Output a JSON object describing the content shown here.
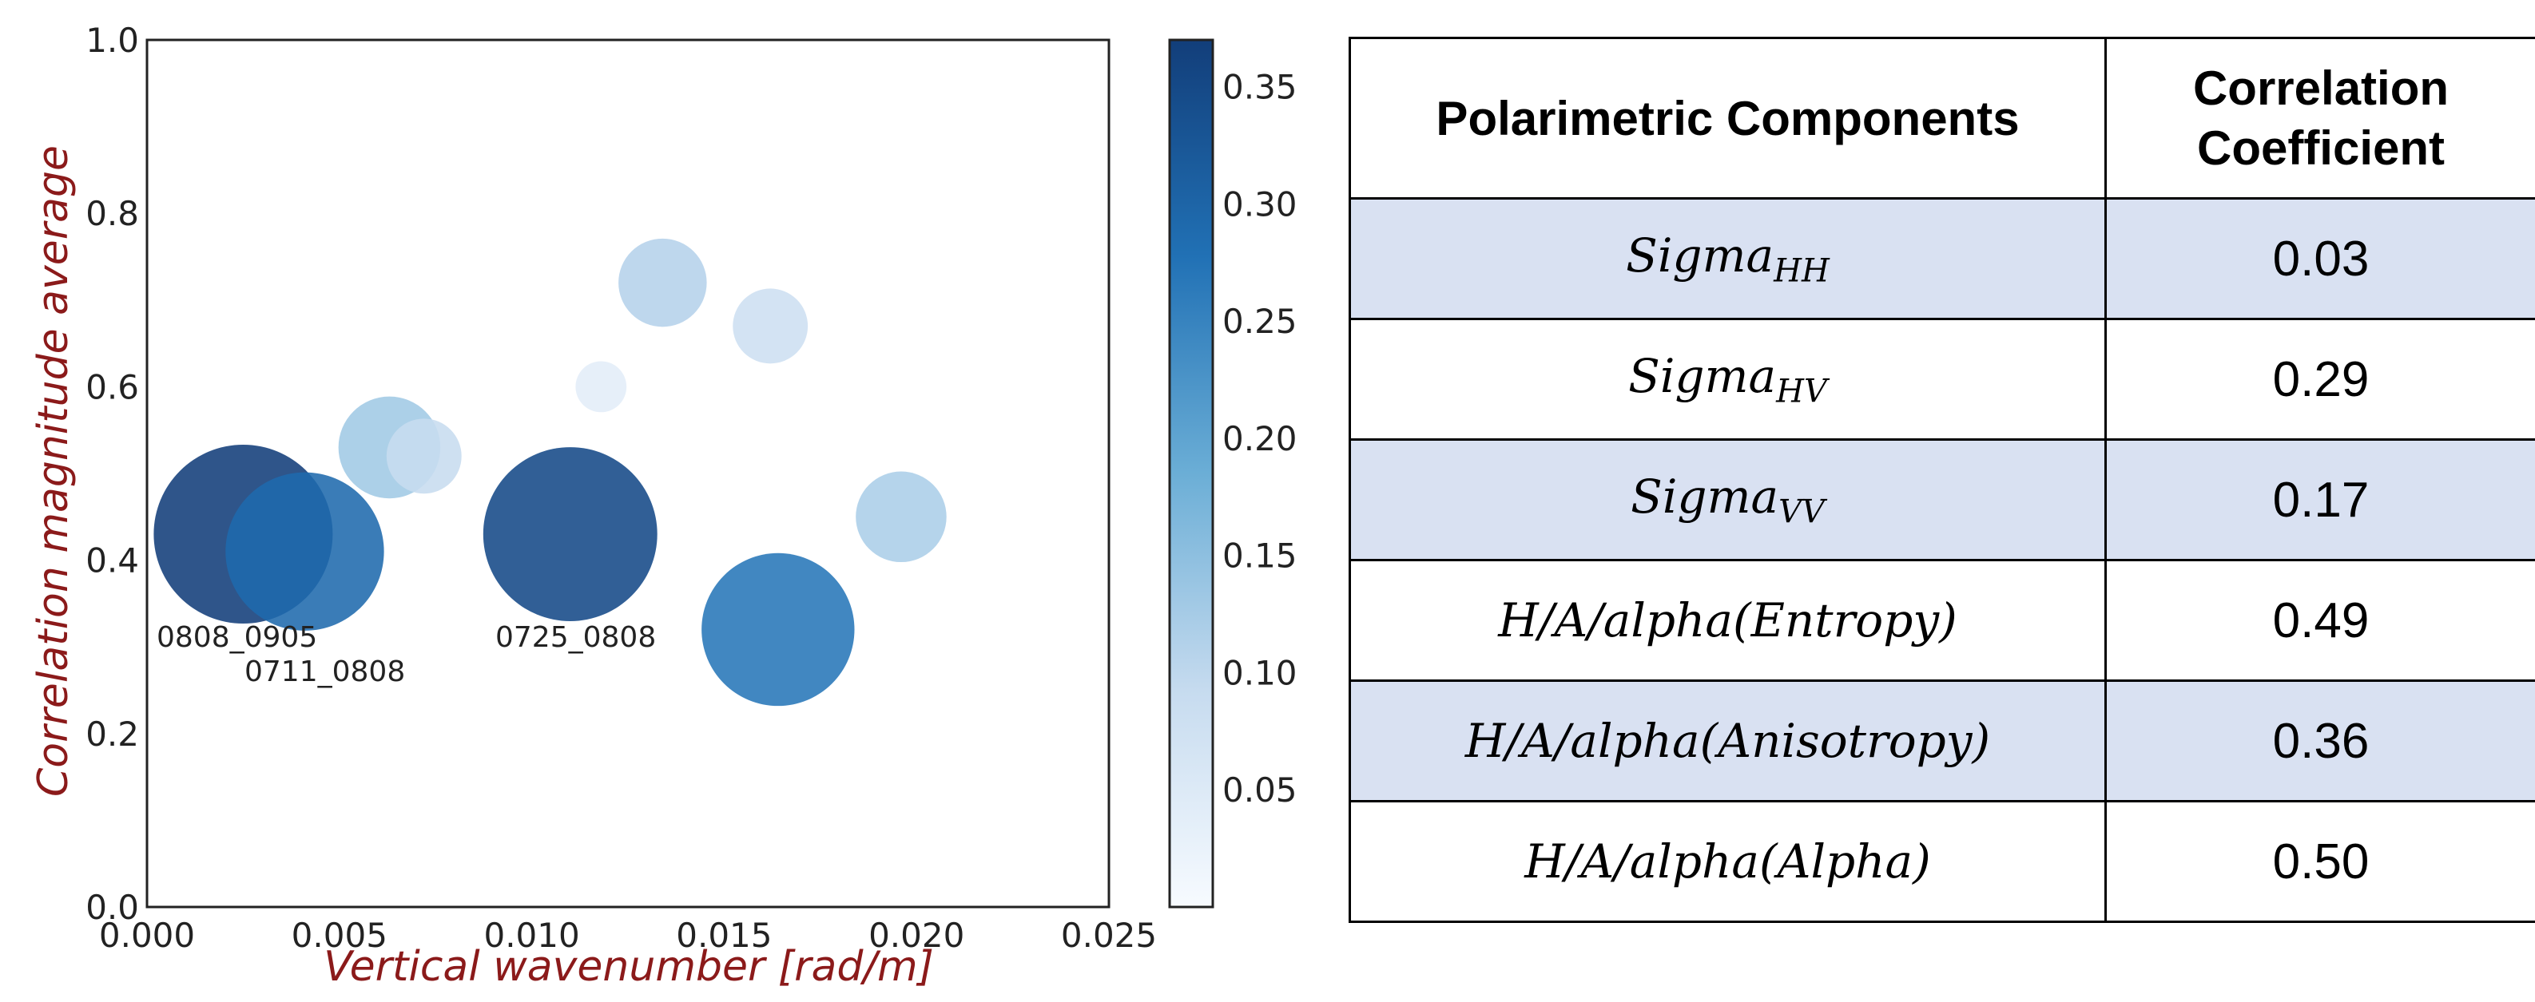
{
  "chart_data": {
    "type": "scatter",
    "xlabel": "Vertical wavenumber [rad/m]",
    "ylabel": "Correlation magnitude average",
    "xlim": [
      0.0,
      0.025
    ],
    "ylim": [
      0.0,
      1.0
    ],
    "xticks": [
      "0.000",
      "0.005",
      "0.010",
      "0.015",
      "0.020",
      "0.025"
    ],
    "yticks": [
      "0.0",
      "0.2",
      "0.4",
      "0.6",
      "0.8",
      "1.0"
    ],
    "colorbar": {
      "min": 0.0,
      "max": 0.37,
      "ticks": [
        "0.05",
        "0.10",
        "0.15",
        "0.20",
        "0.25",
        "0.30",
        "0.35"
      ],
      "colormap": "Blues"
    },
    "grid": false,
    "points": [
      {
        "x": 0.0025,
        "y": 0.43,
        "color_value": 0.37,
        "size": 0.37,
        "label": "0808_0905"
      },
      {
        "x": 0.0041,
        "y": 0.41,
        "color_value": 0.29,
        "size": 0.29,
        "label": "0711_0808"
      },
      {
        "x": 0.011,
        "y": 0.43,
        "color_value": 0.35,
        "size": 0.35,
        "label": "0725_0808"
      },
      {
        "x": 0.0164,
        "y": 0.32,
        "color_value": 0.27,
        "size": 0.27,
        "label": ""
      },
      {
        "x": 0.0063,
        "y": 0.53,
        "color_value": 0.13,
        "size": 0.12,
        "label": ""
      },
      {
        "x": 0.0072,
        "y": 0.52,
        "color_value": 0.09,
        "size": 0.065,
        "label": ""
      },
      {
        "x": 0.0134,
        "y": 0.72,
        "color_value": 0.11,
        "size": 0.09,
        "label": ""
      },
      {
        "x": 0.0162,
        "y": 0.67,
        "color_value": 0.08,
        "size": 0.065,
        "label": ""
      },
      {
        "x": 0.0118,
        "y": 0.6,
        "color_value": 0.04,
        "size": 0.03,
        "label": ""
      },
      {
        "x": 0.0196,
        "y": 0.45,
        "color_value": 0.12,
        "size": 0.095,
        "label": ""
      }
    ]
  },
  "table": {
    "headers": [
      "Polarimetric Components",
      "Correlation Coefficient"
    ],
    "rows": [
      {
        "base": "Sigma",
        "sub": "HH",
        "value": "0.03"
      },
      {
        "base": "Sigma",
        "sub": "HV",
        "value": "0.29"
      },
      {
        "base": "Sigma",
        "sub": "VV",
        "value": "0.17"
      },
      {
        "base": "H/A/alpha(Entropy)",
        "sub": "",
        "value": "0.49"
      },
      {
        "base": "H/A/alpha(Anisotropy)",
        "sub": "",
        "value": "0.36"
      },
      {
        "base": "H/A/alpha(Alpha)",
        "sub": "",
        "value": "0.50"
      }
    ]
  }
}
